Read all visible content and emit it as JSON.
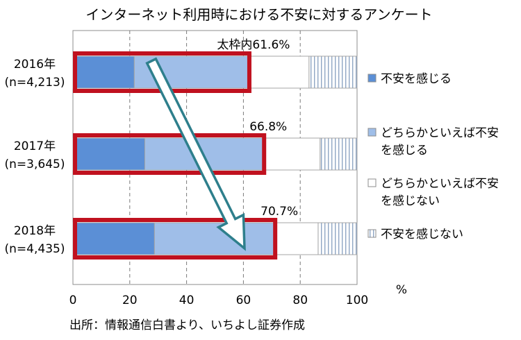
{
  "chart_data": {
    "type": "bar",
    "stacked": true,
    "orientation": "horizontal",
    "title": "インターネット利用時における不安に対するアンケート",
    "categories": [
      {
        "year": "2016年",
        "n": "(n=4,213)"
      },
      {
        "year": "2017年",
        "n": "(n=3,645)"
      },
      {
        "year": "2018年",
        "n": "(n=4,435)"
      }
    ],
    "series": [
      {
        "name": "不安を感じる",
        "values": [
          21.6,
          25.3,
          28.7
        ],
        "color": "#5b8fd6",
        "pattern": "solid"
      },
      {
        "name": "どちらかといえば不安を感じる",
        "values": [
          40.0,
          41.5,
          42.0
        ],
        "color": "#9fbee8",
        "pattern": "solid"
      },
      {
        "name": "どちらかといえば不安を感じない",
        "values": [
          21.5,
          20.2,
          15.6
        ],
        "color": "#ffffff",
        "pattern": "solid"
      },
      {
        "name": "不安を感じない",
        "values": [
          16.9,
          13.0,
          13.7
        ],
        "color": "#ffffff",
        "pattern": "vertical-stripes"
      }
    ],
    "box_labels": [
      "太枠内61.6%",
      "66.8%",
      "70.7%"
    ],
    "box_values": [
      61.6,
      66.8,
      70.7
    ],
    "xlim": [
      0,
      100
    ],
    "xticks": [
      "0",
      "20",
      "40",
      "60",
      "80",
      "100"
    ],
    "xlabel": "",
    "unit_label": "%",
    "grid": "dashed-vertical",
    "legend_position": "right",
    "highlight_color": "#c0111f",
    "arrow_color": "#2e7f8c"
  },
  "source": "出所：情報通信白書より、いちよし証券作成"
}
